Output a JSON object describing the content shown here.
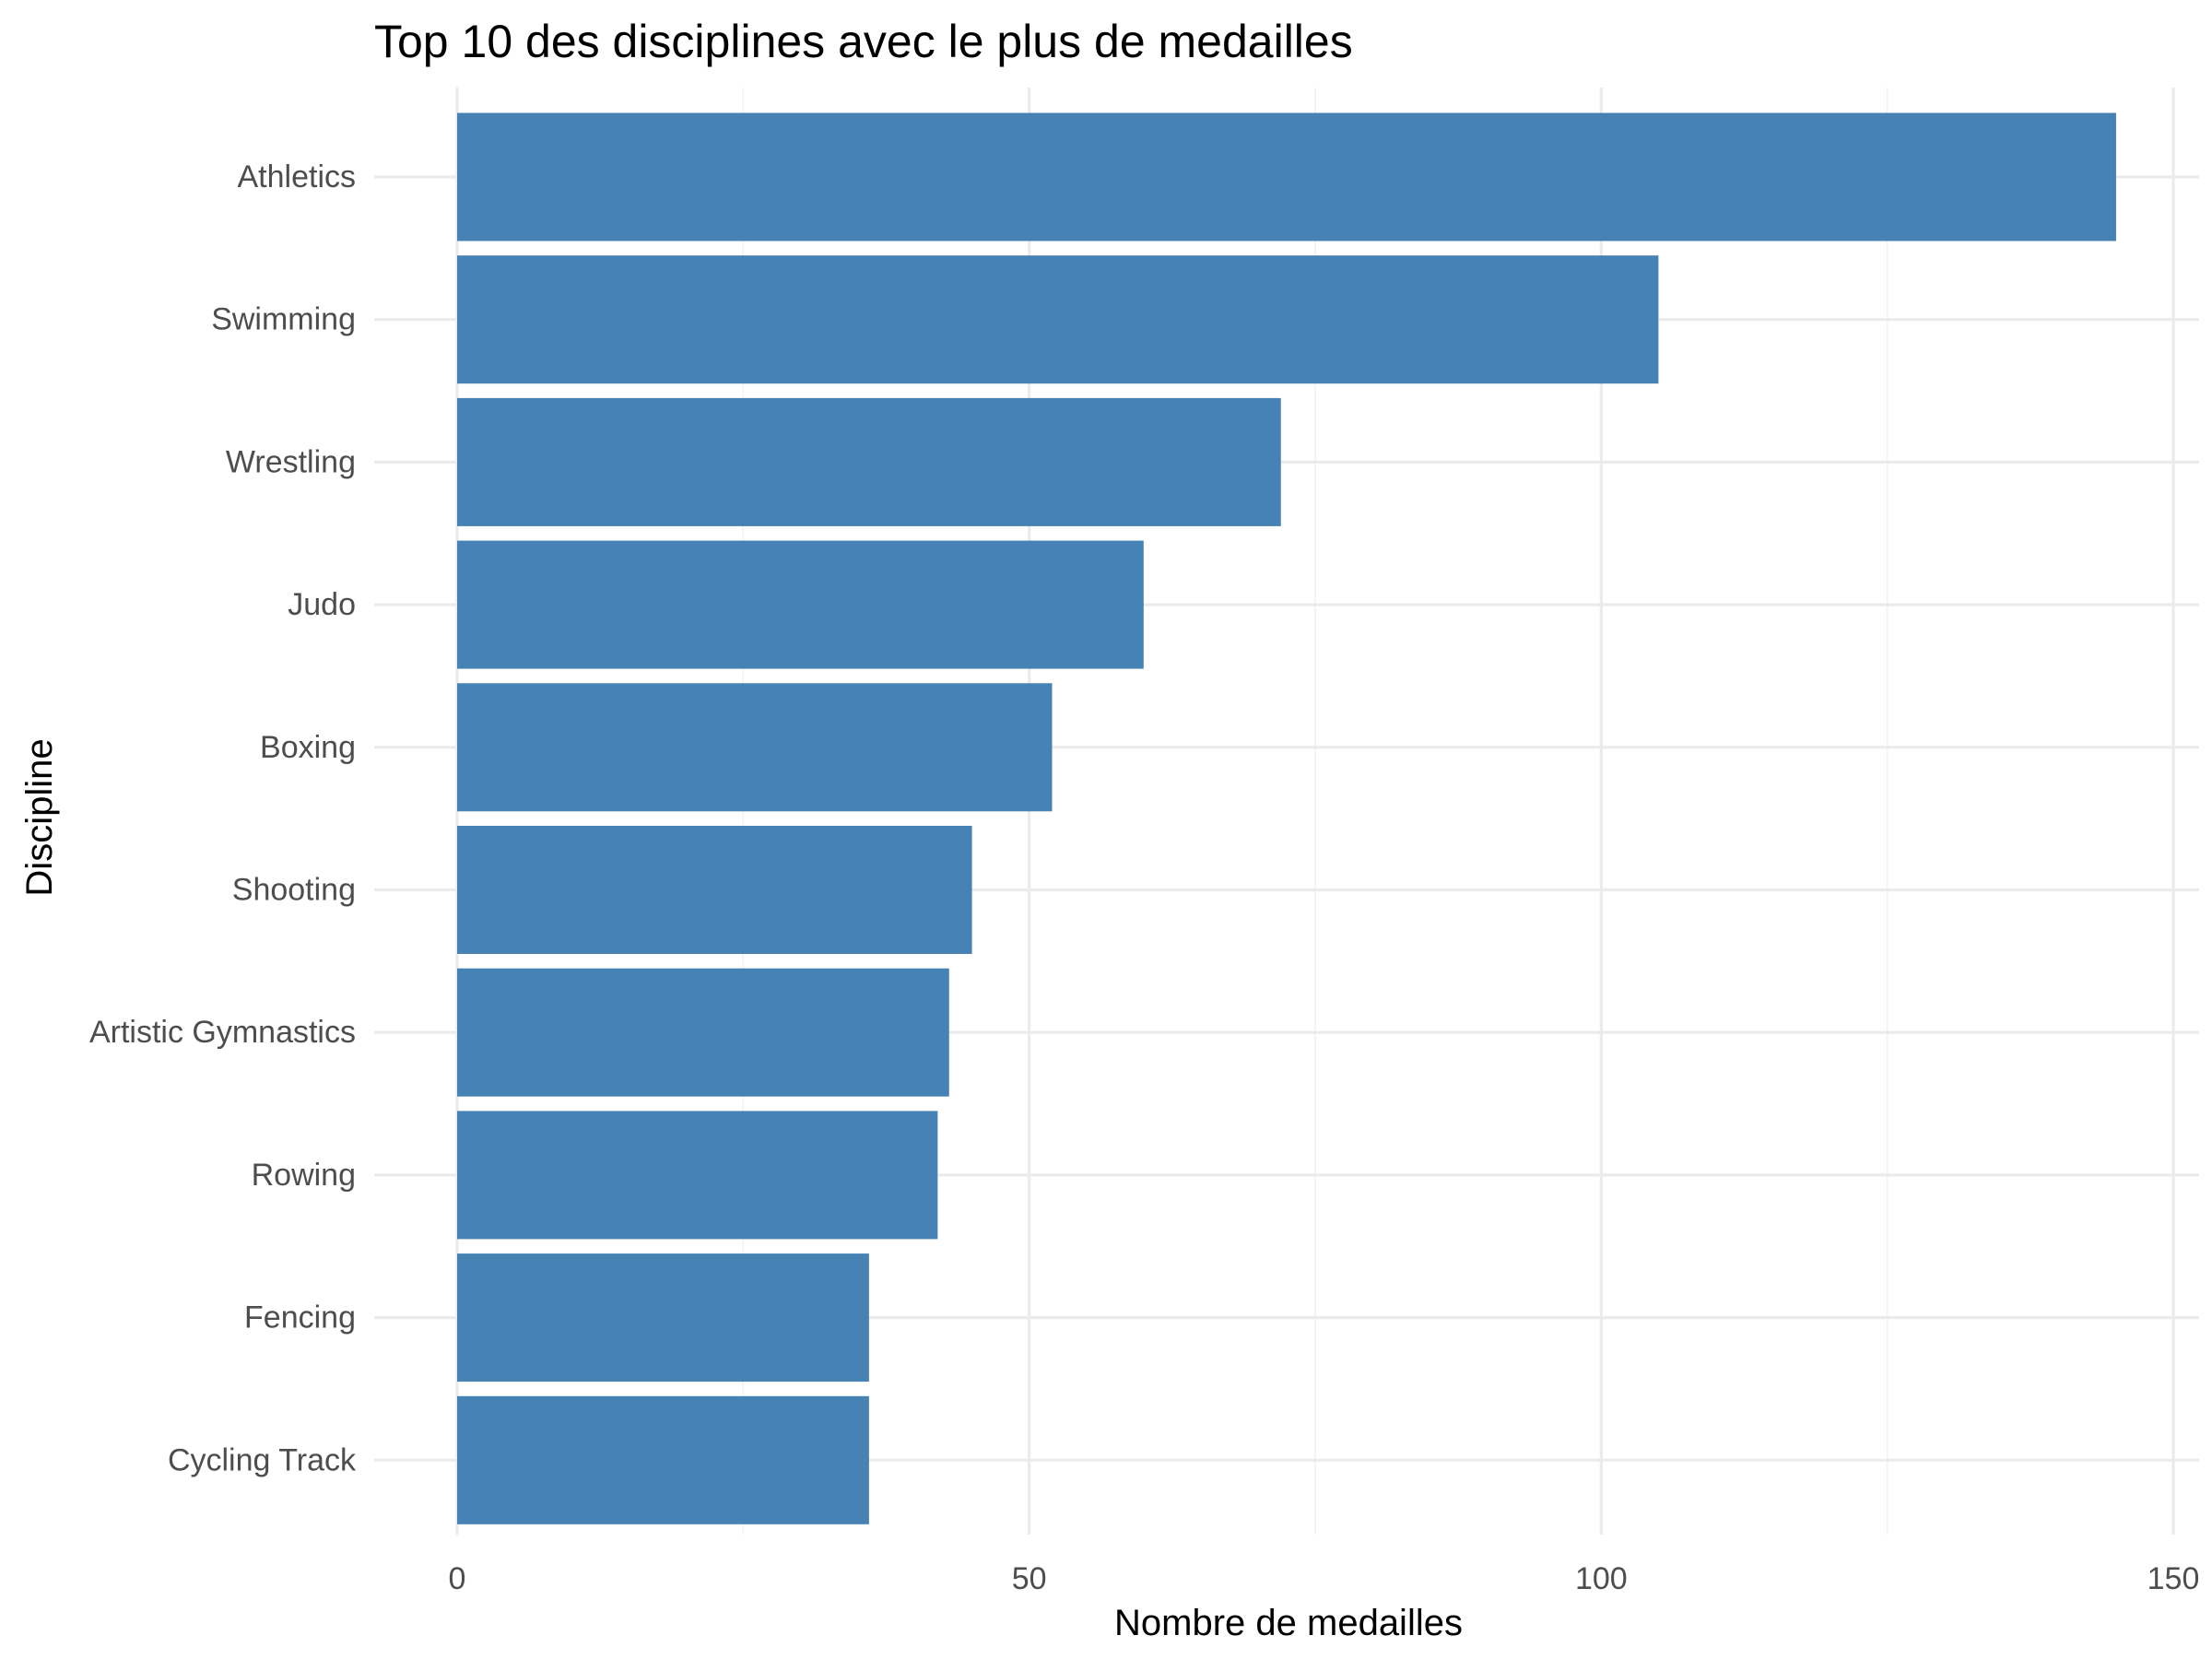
{
  "chart_data": {
    "type": "bar",
    "orientation": "horizontal",
    "title": "Top 10 des disciplines avec le plus de medailles",
    "xlabel": "Nombre de medailles",
    "ylabel": "Discipline",
    "categories": [
      "Athletics",
      "Swimming",
      "Wrestling",
      "Judo",
      "Boxing",
      "Shooting",
      "Artistic Gymnastics",
      "Rowing",
      "Fencing",
      "Cycling Track"
    ],
    "values": [
      145,
      105,
      72,
      60,
      52,
      45,
      43,
      42,
      36,
      36
    ],
    "xlim": [
      0,
      150
    ],
    "xticks": [
      "0",
      "50",
      "100",
      "150"
    ],
    "grid": true,
    "legend": "none",
    "bar_color": "#4682B4"
  }
}
